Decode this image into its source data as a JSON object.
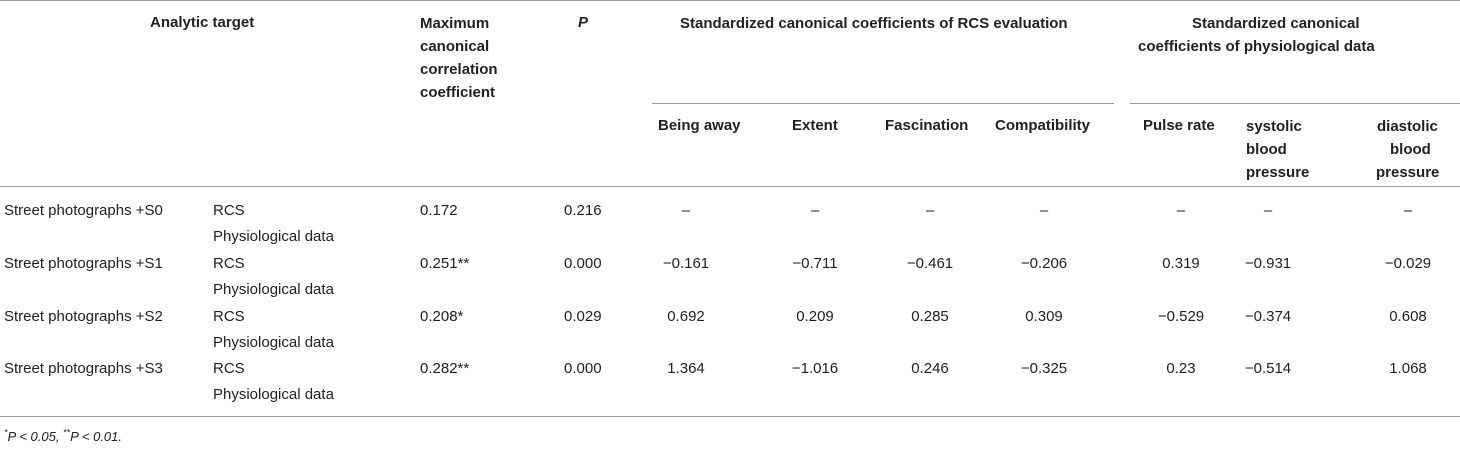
{
  "headers": {
    "analytic_target": "Analytic target",
    "max_coef": [
      "Maximum",
      "canonical",
      "correlation",
      "coefficient"
    ],
    "p": "P",
    "rcs_group": "Standardized canonical coefficients of RCS evaluation",
    "phys_group": [
      "Standardized canonical",
      "coefficients of physiological data"
    ],
    "being_away": "Being away",
    "extent": "Extent",
    "fascination": "Fascination",
    "compatibility": "Compatibility",
    "pulse_rate": "Pulse rate",
    "systolic": [
      "systolic",
      "blood",
      "pressure"
    ],
    "diastolic": [
      "diastolic",
      "blood",
      "pressure"
    ]
  },
  "rows": [
    {
      "target": "Street photographs +S0",
      "sub1": "RCS",
      "sub2": "Physiological data",
      "max": "0.172",
      "p": "0.216",
      "being_away": "–",
      "extent": "–",
      "fascination": "–",
      "compatibility": "–",
      "pulse": "–",
      "systolic": "–",
      "diastolic": "–"
    },
    {
      "target": "Street photographs +S1",
      "sub1": "RCS",
      "sub2": "Physiological data",
      "max": "0.251**",
      "p": "0.000",
      "being_away": "−0.161",
      "extent": "−0.711",
      "fascination": "−0.461",
      "compatibility": "−0.206",
      "pulse": "0.319",
      "systolic": "−0.931",
      "diastolic": "−0.029"
    },
    {
      "target": "Street photographs +S2",
      "sub1": "RCS",
      "sub2": "Physiological data",
      "max": "0.208*",
      "p": "0.029",
      "being_away": "0.692",
      "extent": "0.209",
      "fascination": "0.285",
      "compatibility": "0.309",
      "pulse": "−0.529",
      "systolic": "−0.374",
      "diastolic": "0.608"
    },
    {
      "target": "Street photographs +S3",
      "sub1": "RCS",
      "sub2": "Physiological data",
      "max": "0.282**",
      "p": "0.000",
      "being_away": "1.364",
      "extent": "−1.016",
      "fascination": "0.246",
      "compatibility": "−0.325",
      "pulse": "0.23",
      "systolic": "−0.514",
      "diastolic": "1.068"
    }
  ],
  "footnote": {
    "star1": "*",
    "text1": "P < 0.05, ",
    "star2": "**",
    "text2": "P < 0.01."
  }
}
